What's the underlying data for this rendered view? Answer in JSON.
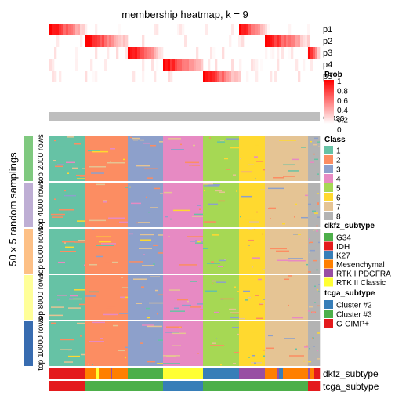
{
  "chart_data": {
    "type": "heatmap",
    "title": "membership heatmap, k = 9",
    "row_axis_label": "50 x 5 random samplings",
    "prob_rows": [
      "p1",
      "p2",
      "p3",
      "p4",
      "p5"
    ],
    "class_row_label": "Class",
    "block_labels": [
      "top 2000 rows",
      "top 4000 rows",
      "top 6000 rows",
      "top 8000 rows",
      "top 10000 rows"
    ],
    "block_colors": [
      "#7FC97F",
      "#BEAED4",
      "#FDC086",
      "#FFFF99",
      "#386CB0"
    ],
    "class_segments": [
      {
        "class": 1,
        "from": 0,
        "to": 46
      },
      {
        "class": 2,
        "from": 46,
        "to": 100
      },
      {
        "class": 3,
        "from": 100,
        "to": 145
      },
      {
        "class": 4,
        "from": 145,
        "to": 196
      },
      {
        "class": 5,
        "from": 196,
        "to": 242
      },
      {
        "class": 6,
        "from": 242,
        "to": 275
      },
      {
        "class": 7,
        "from": 275,
        "to": 330
      },
      {
        "class": 8,
        "from": 330,
        "to": 345
      }
    ],
    "n_columns": 345,
    "legends": {
      "prob": {
        "title": "Prob",
        "ticks": [
          "1",
          "0.8",
          "0.6",
          "0.4",
          "0.2",
          "0"
        ],
        "color_high": "#FF0000",
        "color_low": "#FFFFFF"
      },
      "class": {
        "title": "Class",
        "items": [
          {
            "label": "1",
            "color": "#66C2A5"
          },
          {
            "label": "2",
            "color": "#FC8D62"
          },
          {
            "label": "3",
            "color": "#8DA0CB"
          },
          {
            "label": "4",
            "color": "#E78AC3"
          },
          {
            "label": "5",
            "color": "#A6D854"
          },
          {
            "label": "6",
            "color": "#FFD92F"
          },
          {
            "label": "7",
            "color": "#E5C494"
          },
          {
            "label": "8",
            "color": "#B3B3B3"
          }
        ]
      },
      "dkfz_subtype": {
        "title": "dkfz_subtype",
        "items": [
          {
            "label": "G34",
            "color": "#4DAF4A"
          },
          {
            "label": "IDH",
            "color": "#E41A1C"
          },
          {
            "label": "K27",
            "color": "#377EB8"
          },
          {
            "label": "Mesenchymal",
            "color": "#FF7F00"
          },
          {
            "label": "RTK I PDGFRA",
            "color": "#984EA3"
          },
          {
            "label": "RTK II Classic",
            "color": "#FFFF33"
          }
        ]
      },
      "tcga_subtype": {
        "title": "tcga_subtype",
        "items": [
          {
            "label": "Cluster #2",
            "color": "#377EB8"
          },
          {
            "label": "Cluster #3",
            "color": "#4DAF4A"
          },
          {
            "label": "G-CIMP+",
            "color": "#E41A1C"
          }
        ]
      }
    },
    "bottom_annotations": [
      {
        "label": "dkfz_subtype",
        "segments": [
          {
            "from": 0,
            "to": 46,
            "color": "#E41A1C"
          },
          {
            "from": 46,
            "to": 60,
            "color": "#FF7F00"
          },
          {
            "from": 60,
            "to": 63,
            "color": "#FFFF33"
          },
          {
            "from": 63,
            "to": 78,
            "color": "#FF7F00"
          },
          {
            "from": 78,
            "to": 80,
            "color": "#984EA3"
          },
          {
            "from": 80,
            "to": 100,
            "color": "#FF7F00"
          },
          {
            "from": 100,
            "to": 145,
            "color": "#4DAF4A"
          },
          {
            "from": 145,
            "to": 196,
            "color": "#FFFF33"
          },
          {
            "from": 196,
            "to": 242,
            "color": "#377EB8"
          },
          {
            "from": 242,
            "to": 275,
            "color": "#984EA3"
          },
          {
            "from": 275,
            "to": 290,
            "color": "#FF7F00"
          },
          {
            "from": 290,
            "to": 293,
            "color": "#984EA3"
          },
          {
            "from": 293,
            "to": 298,
            "color": "#377EB8"
          },
          {
            "from": 298,
            "to": 330,
            "color": "#FF7F00"
          },
          {
            "from": 330,
            "to": 332,
            "color": "#984EA3"
          },
          {
            "from": 332,
            "to": 338,
            "color": "#FF7F00"
          },
          {
            "from": 338,
            "to": 345,
            "color": "#E41A1C"
          }
        ]
      },
      {
        "label": "tcga_subtype",
        "segments": [
          {
            "from": 0,
            "to": 46,
            "color": "#E41A1C"
          },
          {
            "from": 46,
            "to": 145,
            "color": "#4DAF4A"
          },
          {
            "from": 145,
            "to": 196,
            "color": "#377EB8"
          },
          {
            "from": 196,
            "to": 330,
            "color": "#4DAF4A"
          },
          {
            "from": 330,
            "to": 345,
            "color": "#E41A1C"
          }
        ]
      }
    ]
  }
}
